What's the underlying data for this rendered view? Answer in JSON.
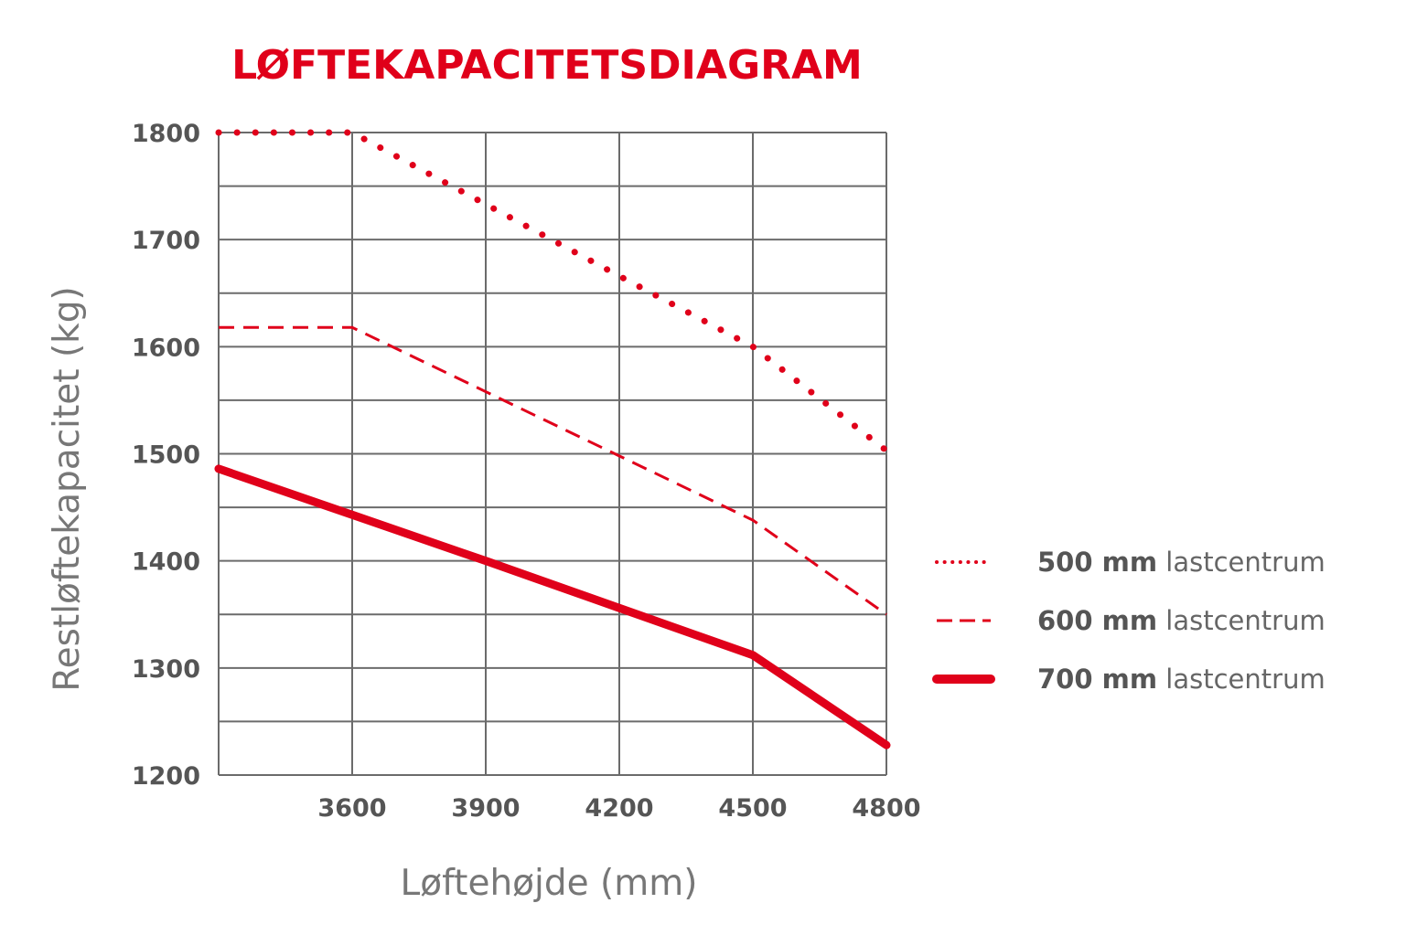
{
  "chart_data": {
    "type": "line",
    "title": "LØFTEKAPACITETSDIAGRAM",
    "xlabel": "Løftehøjde (mm)",
    "ylabel": "Restløftekapacitet (kg)",
    "xlim": [
      3300,
      4800
    ],
    "ylim": [
      1200,
      1800
    ],
    "x_ticks": [
      "3600",
      "3900",
      "4200",
      "4500",
      "4800"
    ],
    "y_ticks": [
      "1200",
      "1300",
      "1400",
      "1500",
      "1600",
      "1700",
      "1800"
    ],
    "grid": true,
    "legend_position": "right",
    "series": [
      {
        "name_bold": "500 mm",
        "name_rest": "lastcentrum",
        "style": "dotted",
        "color": "#e0001a",
        "x": [
          3300,
          3600,
          3900,
          4200,
          4500,
          4800
        ],
        "y": [
          1800,
          1800,
          1733,
          1666,
          1600,
          1503
        ]
      },
      {
        "name_bold": "600 mm",
        "name_rest": "lastcentrum",
        "style": "dashed",
        "color": "#e0001a",
        "x": [
          3300,
          3600,
          3900,
          4200,
          4500,
          4800
        ],
        "y": [
          1618,
          1618,
          1558,
          1498,
          1438,
          1350
        ]
      },
      {
        "name_bold": "700 mm",
        "name_rest": "lastcentrum",
        "style": "solid",
        "color": "#e0001a",
        "x": [
          3300,
          3600,
          3900,
          4200,
          4500,
          4800
        ],
        "y": [
          1486,
          1443,
          1400,
          1356,
          1312,
          1228
        ]
      }
    ]
  }
}
